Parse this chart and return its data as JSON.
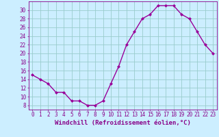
{
  "x": [
    0,
    1,
    2,
    3,
    4,
    5,
    6,
    7,
    8,
    9,
    10,
    11,
    12,
    13,
    14,
    15,
    16,
    17,
    18,
    19,
    20,
    21,
    22,
    23
  ],
  "y": [
    15,
    14,
    13,
    11,
    11,
    9,
    9,
    8,
    8,
    9,
    13,
    17,
    22,
    25,
    28,
    29,
    31,
    31,
    31,
    29,
    28,
    25,
    22,
    20
  ],
  "line_color": "#990099",
  "marker": "D",
  "marker_size": 2.0,
  "bg_color": "#cceeff",
  "grid_color": "#99cccc",
  "xlabel": "Windchill (Refroidissement éolien,°C)",
  "ylabel": "",
  "xlim": [
    -0.5,
    23.5
  ],
  "ylim": [
    7,
    32
  ],
  "yticks": [
    8,
    10,
    12,
    14,
    16,
    18,
    20,
    22,
    24,
    26,
    28,
    30
  ],
  "xticks": [
    0,
    1,
    2,
    3,
    4,
    5,
    6,
    7,
    8,
    9,
    10,
    11,
    12,
    13,
    14,
    15,
    16,
    17,
    18,
    19,
    20,
    21,
    22,
    23
  ],
  "tick_color": "#880088",
  "label_color": "#880088",
  "axis_color": "#880088",
  "xlabel_fontsize": 6.5,
  "tick_fontsize": 5.5,
  "linewidth": 1.0
}
